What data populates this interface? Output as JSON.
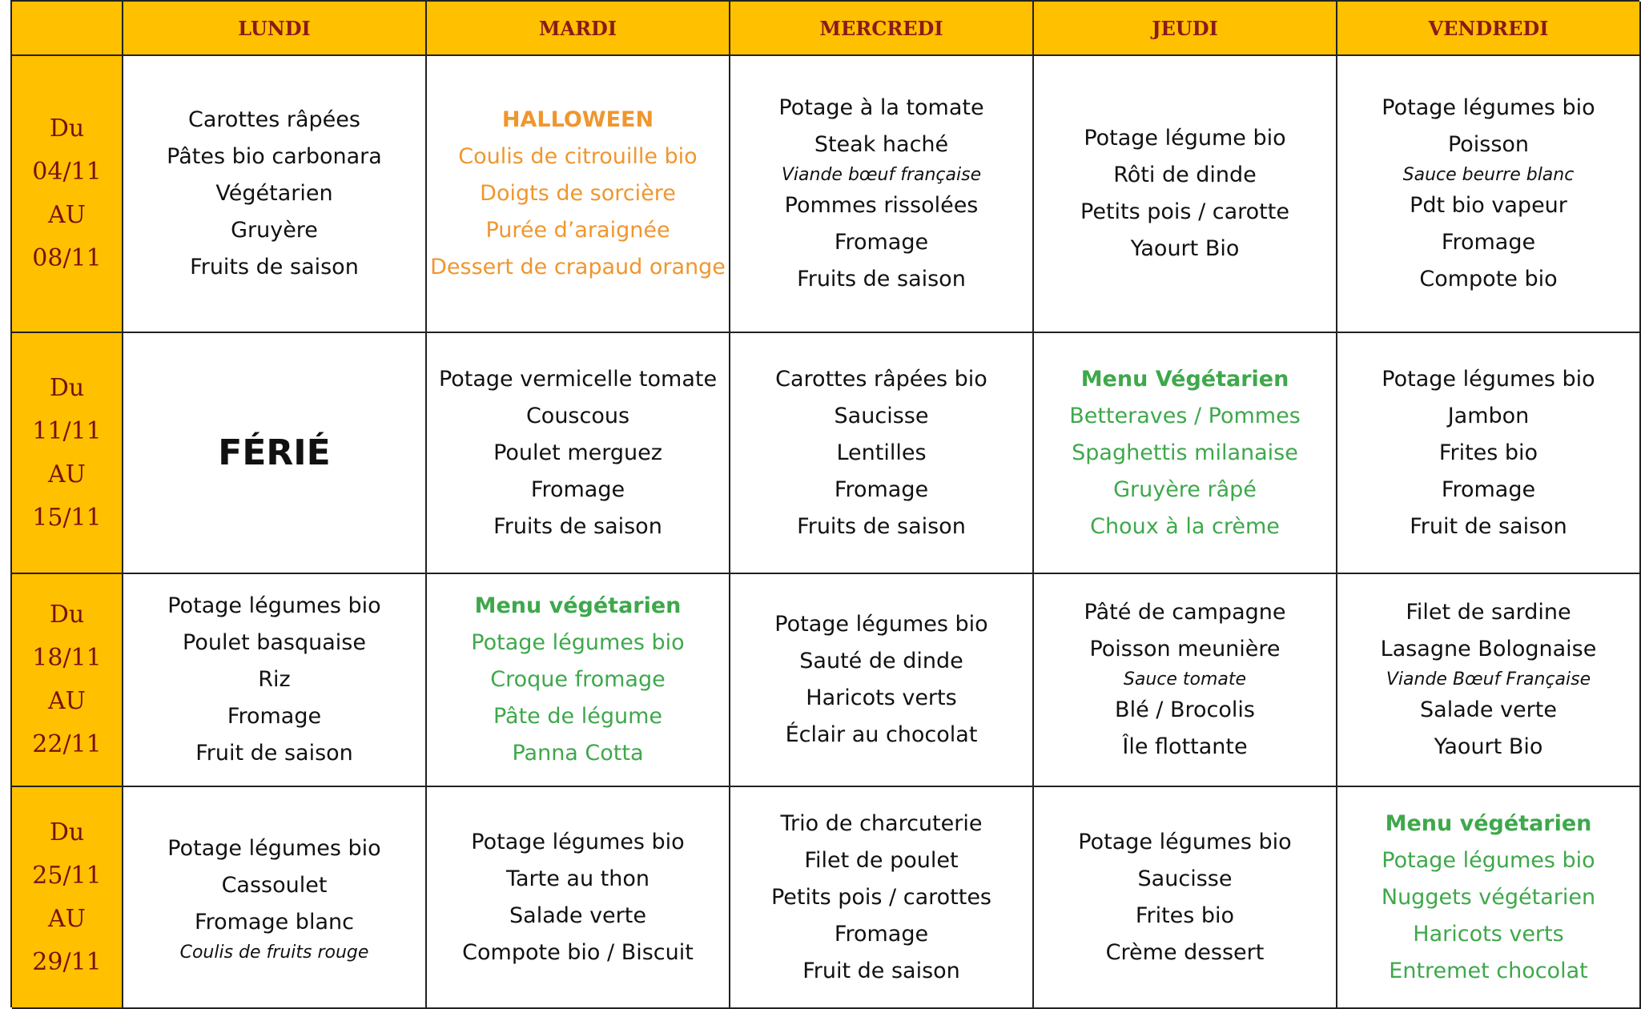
{
  "header": {
    "days": [
      "LUNDI",
      "MARDI",
      "MERCREDI",
      "JEUDI",
      "VENDREDI"
    ]
  },
  "weeks": [
    {
      "label": [
        "Du",
        "04/11",
        "AU",
        "08/11"
      ],
      "cells": [
        {
          "items": [
            {
              "text": "Carottes râpées"
            },
            {
              "text": "Pâtes bio carbonara"
            },
            {
              "text": "Végétarien"
            },
            {
              "text": "Gruyère"
            },
            {
              "text": "Fruits de saison"
            }
          ]
        },
        {
          "color": "#F0962E",
          "items": [
            {
              "text": "HALLOWEEN",
              "bold": true
            },
            {
              "text": "Coulis de citrouille bio"
            },
            {
              "text": "Doigts de sorcière"
            },
            {
              "text": "Purée d’araignée"
            },
            {
              "text": "Dessert de crapaud orange"
            }
          ]
        },
        {
          "items": [
            {
              "text": "Potage à la tomate"
            },
            {
              "text": "Steak haché"
            },
            {
              "text": "Viande bœuf française",
              "italic": true
            },
            {
              "text": "Pommes rissolées"
            },
            {
              "text": "Fromage"
            },
            {
              "text": "Fruits de saison"
            }
          ]
        },
        {
          "items": [
            {
              "text": "Potage légume bio"
            },
            {
              "text": "Rôti de dinde"
            },
            {
              "text": "Petits pois / carotte"
            },
            {
              "text": "Yaourt Bio"
            }
          ]
        },
        {
          "items": [
            {
              "text": "Potage légumes bio"
            },
            {
              "text": "Poisson"
            },
            {
              "text": "Sauce beurre blanc",
              "italic": true
            },
            {
              "text": "Pdt bio vapeur"
            },
            {
              "text": "Fromage"
            },
            {
              "text": "Compote bio"
            }
          ]
        }
      ]
    },
    {
      "label": [
        "Du",
        "11/11",
        "AU",
        "15/11"
      ],
      "cells": [
        {
          "items": [
            {
              "text": "FÉRIÉ",
              "big": true
            }
          ]
        },
        {
          "items": [
            {
              "text": "Potage vermicelle tomate"
            },
            {
              "text": "Couscous"
            },
            {
              "text": "Poulet merguez"
            },
            {
              "text": "Fromage"
            },
            {
              "text": "Fruits de saison"
            }
          ]
        },
        {
          "items": [
            {
              "text": "Carottes râpées bio"
            },
            {
              "text": "Saucisse"
            },
            {
              "text": "Lentilles"
            },
            {
              "text": "Fromage"
            },
            {
              "text": "Fruits de saison"
            }
          ]
        },
        {
          "color": "#3EA84B",
          "items": [
            {
              "text": "Menu Végétarien",
              "bold": true
            },
            {
              "text": "Betteraves / Pommes"
            },
            {
              "text": "Spaghettis milanaise"
            },
            {
              "text": "Gruyère râpé"
            },
            {
              "text": "Choux à la crème"
            }
          ]
        },
        {
          "items": [
            {
              "text": "Potage légumes bio"
            },
            {
              "text": "Jambon"
            },
            {
              "text": "Frites bio"
            },
            {
              "text": "Fromage"
            },
            {
              "text": "Fruit de saison"
            }
          ]
        }
      ]
    },
    {
      "label": [
        "Du",
        "18/11",
        "AU",
        "22/11"
      ],
      "cells": [
        {
          "items": [
            {
              "text": "Potage légumes bio"
            },
            {
              "text": "Poulet basquaise"
            },
            {
              "text": "Riz"
            },
            {
              "text": "Fromage"
            },
            {
              "text": "Fruit de saison"
            }
          ]
        },
        {
          "color": "#3EA84B",
          "items": [
            {
              "text": "Menu végétarien",
              "bold": true
            },
            {
              "text": "Potage légumes bio"
            },
            {
              "text": "Croque fromage"
            },
            {
              "text": "Pâte de légume"
            },
            {
              "text": "Panna Cotta"
            }
          ]
        },
        {
          "items": [
            {
              "text": "Potage légumes bio"
            },
            {
              "text": "Sauté de dinde"
            },
            {
              "text": "Haricots verts"
            },
            {
              "text": "Éclair au chocolat"
            }
          ]
        },
        {
          "items": [
            {
              "text": "Pâté de campagne"
            },
            {
              "text": "Poisson meunière"
            },
            {
              "text": "Sauce tomate",
              "italic": true
            },
            {
              "text": "Blé / Brocolis"
            },
            {
              "text": "Île flottante"
            }
          ]
        },
        {
          "items": [
            {
              "text": "Filet de sardine"
            },
            {
              "text": "Lasagne Bolognaise"
            },
            {
              "text": "Viande Bœuf Française",
              "italic": true
            },
            {
              "text": "Salade verte"
            },
            {
              "text": "Yaourt Bio"
            }
          ]
        }
      ]
    },
    {
      "label": [
        "Du",
        "25/11",
        "AU",
        "29/11"
      ],
      "cells": [
        {
          "items": [
            {
              "text": "Potage légumes bio"
            },
            {
              "text": "Cassoulet"
            },
            {
              "text": "Fromage blanc"
            },
            {
              "text": "Coulis de fruits rouge",
              "italic": true
            }
          ]
        },
        {
          "items": [
            {
              "text": "Potage légumes bio"
            },
            {
              "text": "Tarte au thon"
            },
            {
              "text": "Salade verte"
            },
            {
              "text": "Compote bio / Biscuit"
            }
          ]
        },
        {
          "items": [
            {
              "text": "Trio de charcuterie"
            },
            {
              "text": "Filet de poulet"
            },
            {
              "text": "Petits pois / carottes"
            },
            {
              "text": "Fromage"
            },
            {
              "text": "Fruit de saison"
            }
          ]
        },
        {
          "items": [
            {
              "text": "Potage légumes bio"
            },
            {
              "text": "Saucisse"
            },
            {
              "text": "Frites bio"
            },
            {
              "text": "Crème dessert"
            }
          ]
        },
        {
          "color": "#3EA84B",
          "items": [
            {
              "text": "Menu végétarien",
              "bold": true
            },
            {
              "text": "Potage légumes bio"
            },
            {
              "text": "Nuggets végétarien"
            },
            {
              "text": "Haricots verts"
            },
            {
              "text": "Entremet chocolat"
            }
          ]
        }
      ]
    }
  ]
}
